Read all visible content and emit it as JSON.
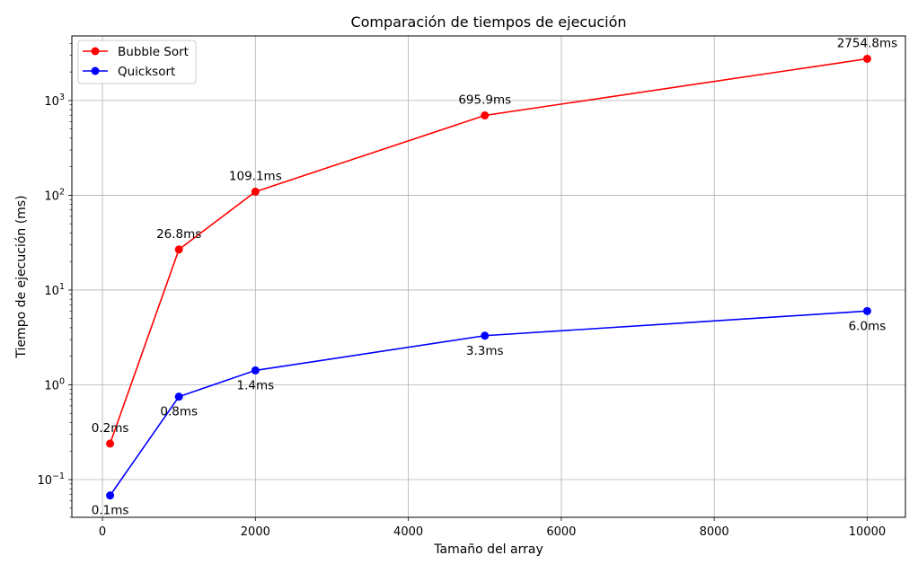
{
  "chart_data": {
    "type": "line",
    "title": "Comparación de tiempos de ejecución",
    "xlabel": "Tamaño del array",
    "ylabel": "Tiempo de ejecución (ms)",
    "xlim": [
      -400,
      10500
    ],
    "ylim": [
      0.04,
      4800
    ],
    "y_scale": "log",
    "grid": true,
    "legend_position": "top-left",
    "x_ticks": [
      0,
      2000,
      4000,
      6000,
      8000,
      10000
    ],
    "x_tick_labels": [
      "0",
      "2000",
      "4000",
      "6000",
      "8000",
      "10000"
    ],
    "y_ticks": [
      0.1,
      1,
      10,
      100,
      1000
    ],
    "y_tick_exponents": [
      "−1",
      "0",
      "1",
      "2",
      "3"
    ],
    "y_tick_base": "10",
    "x": [
      100,
      1000,
      2000,
      5000,
      10000
    ],
    "series": [
      {
        "name": "Bubble Sort",
        "color": "#ff0000",
        "values": [
          0.24,
          26.8,
          109.1,
          695.9,
          2754.8
        ],
        "labels": [
          "0.2ms",
          "26.8ms",
          "109.1ms",
          "695.9ms",
          "2754.8ms"
        ],
        "label_position": "above"
      },
      {
        "name": "Quicksort",
        "color": "#0000ff",
        "values": [
          0.068,
          0.75,
          1.42,
          3.3,
          6.0
        ],
        "labels": [
          "0.1ms",
          "0.8ms",
          "1.4ms",
          "3.3ms",
          "6.0ms"
        ],
        "label_position": "below"
      }
    ]
  }
}
